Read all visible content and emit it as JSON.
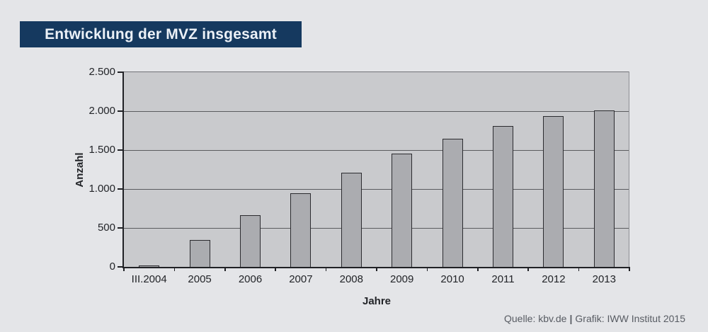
{
  "header": {
    "title": "Entwicklung der MVZ insgesamt"
  },
  "chart_data": {
    "type": "bar",
    "title": "Entwicklung der MVZ insgesamt",
    "categories": [
      "III.2004",
      "2005",
      "2006",
      "2007",
      "2008",
      "2009",
      "2010",
      "2011",
      "2012",
      "2013"
    ],
    "values": [
      20,
      350,
      665,
      950,
      1210,
      1455,
      1650,
      1810,
      1935,
      2005
    ],
    "xlabel": "Jahre",
    "ylabel": "Anzahl",
    "ylim": [
      0,
      2500
    ],
    "yticks": [
      0,
      500,
      1000,
      1500,
      2000,
      2500
    ],
    "ytick_labels": [
      "0",
      "500",
      "1.000",
      "1.500",
      "2.000",
      "2.500"
    ],
    "grid": true,
    "legend": false
  },
  "colors": {
    "page_bg": "#e4e5e8",
    "title_bg": "#15395f",
    "title_text": "#ecf1f7",
    "plot_bg": "#c9cacd",
    "bar_fill": "#abacb0",
    "bar_border": "#2b2b2f",
    "gridline": "#5a5b5f",
    "axis": "#202125",
    "tick_text": "#222428",
    "footer_text": "#585c63"
  },
  "footer": {
    "source": "Quelle: kbv.de",
    "separator": "|",
    "credit": "Grafik: IWW Institut 2015"
  }
}
